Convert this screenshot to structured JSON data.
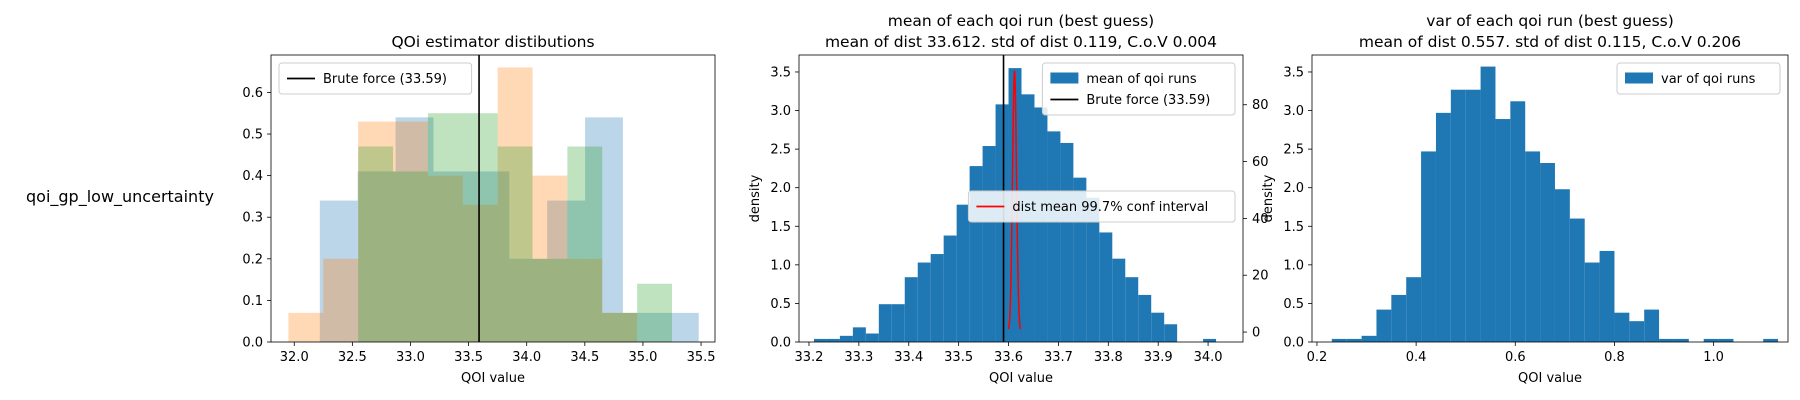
{
  "row_label": "qoi_gp_low_uncertainty",
  "chart_data": [
    {
      "type": "bar",
      "title": "QOi estimator distibutions",
      "xlabel": "QOI value",
      "ylabel": "",
      "xlim": [
        31.8,
        35.62
      ],
      "ylim": [
        0,
        0.69
      ],
      "xticks": [
        32.0,
        32.5,
        33.0,
        33.5,
        34.0,
        34.5,
        35.0,
        35.5
      ],
      "yticks": [
        0.0,
        0.1,
        0.2,
        0.3,
        0.4,
        0.5,
        0.6
      ],
      "xtick_decimals": 1,
      "ytick_decimals": 1,
      "legend": {
        "position": "upper-left",
        "entries": [
          {
            "label": "Brute force (33.59)",
            "kind": "line",
            "color": "#000000"
          }
        ]
      },
      "vlines": [
        {
          "x": 33.59,
          "color": "#000000"
        }
      ],
      "histograms": [
        {
          "color": "#1f77b4",
          "alpha": 0.3,
          "edges": [
            32.22,
            32.546,
            32.872,
            33.198,
            33.524,
            33.85,
            34.176,
            34.502,
            34.828,
            35.154,
            35.48
          ],
          "heights": [
            0.34,
            0.41,
            0.54,
            0.41,
            0.41,
            0.2,
            0.34,
            0.54,
            0.07,
            0.07
          ]
        },
        {
          "color": "#ff7f0e",
          "alpha": 0.3,
          "edges": [
            31.95,
            32.25,
            32.55,
            32.85,
            33.15,
            33.45,
            33.75,
            34.05,
            34.35,
            34.65,
            34.95
          ],
          "heights": [
            0.07,
            0.2,
            0.53,
            0.53,
            0.4,
            0.33,
            0.66,
            0.4,
            0.2,
            0.07
          ]
        },
        {
          "color": "#2ca02c",
          "alpha": 0.3,
          "edges": [
            32.55,
            32.85,
            33.15,
            33.45,
            33.75,
            34.05,
            34.35,
            34.65,
            34.95,
            35.25
          ],
          "heights": [
            0.47,
            0.41,
            0.55,
            0.55,
            0.47,
            0.2,
            0.47,
            0.07,
            0.14,
            0.14
          ]
        }
      ]
    },
    {
      "type": "bar",
      "title": "mean of each qoi run (best guess)",
      "subtitle": "mean of dist 33.612. std of dist 0.119, C.o.V 0.004",
      "xlabel": "QOI value",
      "ylabel": "density",
      "xlim": [
        33.18,
        34.07
      ],
      "ylim": [
        0,
        3.72
      ],
      "xticks": [
        33.2,
        33.3,
        33.4,
        33.5,
        33.6,
        33.7,
        33.8,
        33.9,
        34.0
      ],
      "yticks": [
        0.0,
        0.5,
        1.0,
        1.5,
        2.0,
        2.5,
        3.0,
        3.5
      ],
      "xtick_decimals": 1,
      "ytick_decimals": 1,
      "y2lim": [
        -3.5,
        97.5
      ],
      "y2ticks": [
        0,
        20,
        40,
        60,
        80
      ],
      "legend": {
        "position": "upper-right",
        "entries": [
          {
            "label": "mean of qoi runs",
            "kind": "patch",
            "color": "#1f77b4"
          },
          {
            "label": "Brute force (33.59)",
            "kind": "line",
            "color": "#000000"
          }
        ]
      },
      "legend2": {
        "position": "center-right",
        "entries": [
          {
            "label": "dist mean 99.7% conf interval",
            "kind": "line",
            "color": "#ff0000"
          }
        ]
      },
      "vlines": [
        {
          "x": 33.59,
          "color": "#000000"
        }
      ],
      "histograms": [
        {
          "color": "#1f77b4",
          "alpha": 1.0,
          "edges": [
            33.21,
            33.236,
            33.262,
            33.288,
            33.314,
            33.34,
            33.366,
            33.392,
            33.418,
            33.444,
            33.47,
            33.496,
            33.522,
            33.548,
            33.574,
            33.6,
            33.626,
            33.652,
            33.678,
            33.704,
            33.73,
            33.756,
            33.782,
            33.808,
            33.834,
            33.86,
            33.886,
            33.912,
            33.938,
            33.964,
            33.99,
            34.016
          ],
          "heights": [
            0.04,
            0.04,
            0.08,
            0.19,
            0.11,
            0.49,
            0.49,
            0.84,
            1.03,
            1.14,
            1.38,
            1.78,
            2.28,
            2.54,
            3.08,
            3.55,
            3.21,
            3.04,
            2.73,
            2.58,
            2.13,
            1.87,
            1.42,
            1.08,
            0.84,
            0.61,
            0.38,
            0.23,
            0.0,
            0.0,
            0.04
          ]
        }
      ],
      "conf_curve": {
        "color": "#ff0000",
        "mean": 33.612,
        "half_width": 0.0119,
        "peak": 92.0
      }
    },
    {
      "type": "bar",
      "title": "var of each qoi run (best guess)",
      "subtitle": "mean of dist 0.557. std of dist 0.115, C.o.V 0.206",
      "xlabel": "QOI value",
      "ylabel": "density",
      "xlim": [
        0.19,
        1.15
      ],
      "ylim": [
        0,
        3.72
      ],
      "xticks": [
        0.2,
        0.4,
        0.6,
        0.8,
        1.0
      ],
      "yticks": [
        0.0,
        0.5,
        1.0,
        1.5,
        2.0,
        2.5,
        3.0,
        3.5
      ],
      "xtick_decimals": 1,
      "ytick_decimals": 1,
      "legend": {
        "position": "upper-right",
        "entries": [
          {
            "label": "var of qoi runs",
            "kind": "patch",
            "color": "#1f77b4"
          }
        ]
      },
      "vlines": [],
      "histograms": [
        {
          "color": "#1f77b4",
          "alpha": 1.0,
          "edges": [
            0.23,
            0.26,
            0.29,
            0.32,
            0.35,
            0.38,
            0.41,
            0.44,
            0.47,
            0.5,
            0.53,
            0.56,
            0.59,
            0.62,
            0.65,
            0.68,
            0.71,
            0.74,
            0.77,
            0.8,
            0.83,
            0.86,
            0.89,
            0.92,
            0.95,
            0.98,
            1.01,
            1.04,
            1.07,
            1.1,
            1.13
          ],
          "heights": [
            0.04,
            0.04,
            0.08,
            0.42,
            0.61,
            0.84,
            2.47,
            2.97,
            3.27,
            3.27,
            3.57,
            2.89,
            3.12,
            2.47,
            2.32,
            1.98,
            1.6,
            1.03,
            1.18,
            0.38,
            0.27,
            0.42,
            0.04,
            0.04,
            0.0,
            0.04,
            0.04,
            0.0,
            0.0,
            0.04
          ]
        }
      ]
    }
  ]
}
